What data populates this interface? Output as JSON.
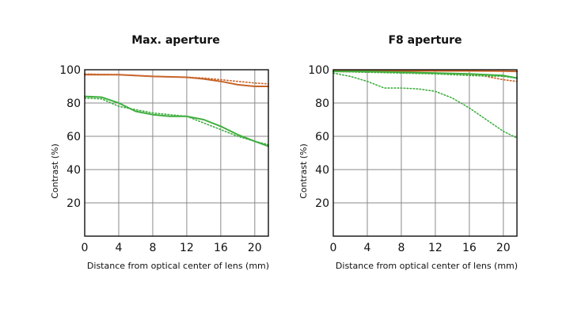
{
  "colors": {
    "orange": "#c8642a",
    "green": "#3fae3f",
    "grid": "#8a8a8a",
    "text": "#111111"
  },
  "chart_data": [
    {
      "type": "line",
      "title": "Max. aperture",
      "xlabel": "Distance from optical center of lens (mm)",
      "ylabel": "Contrast (%)",
      "xlim": [
        0,
        21.6
      ],
      "ylim": [
        0,
        100
      ],
      "xticks": [
        "0",
        "4",
        "8",
        "12",
        "16",
        "20"
      ],
      "yticks": [
        "20",
        "40",
        "60",
        "80",
        "100"
      ],
      "grid": true,
      "series": [
        {
          "color": "orange",
          "style": "solid",
          "x": [
            0,
            4,
            8,
            12,
            14,
            16,
            18,
            20,
            21.6
          ],
          "y": [
            97,
            97,
            96,
            95.5,
            94.5,
            93,
            91,
            90,
            90
          ]
        },
        {
          "color": "orange",
          "style": "dotted",
          "x": [
            0,
            4,
            8,
            12,
            14,
            16,
            18,
            20,
            21.6
          ],
          "y": [
            97.5,
            97,
            96,
            95.5,
            95,
            94,
            93,
            92,
            91.5
          ]
        },
        {
          "color": "green",
          "style": "solid",
          "x": [
            0,
            2,
            4,
            6,
            8,
            10,
            12,
            14,
            16,
            18,
            20,
            21.6
          ],
          "y": [
            84,
            83.5,
            80,
            75,
            73,
            72,
            72,
            70,
            66,
            61,
            57,
            54
          ]
        },
        {
          "color": "green",
          "style": "dotted",
          "x": [
            0,
            2,
            4,
            6,
            8,
            10,
            12,
            14,
            16,
            18,
            20,
            21.6
          ],
          "y": [
            83,
            82.5,
            78,
            76,
            74,
            73,
            72,
            68,
            64,
            60,
            57,
            55
          ]
        }
      ]
    },
    {
      "type": "line",
      "title": "F8 aperture",
      "xlabel": "Distance from optical center of lens (mm)",
      "ylabel": "Contrast (%)",
      "xlim": [
        0,
        21.6
      ],
      "ylim": [
        0,
        100
      ],
      "xticks": [
        "0",
        "4",
        "8",
        "12",
        "16",
        "20"
      ],
      "yticks": [
        "20",
        "40",
        "60",
        "80",
        "100"
      ],
      "grid": true,
      "series": [
        {
          "color": "orange",
          "style": "solid",
          "x": [
            0,
            4,
            8,
            12,
            16,
            20,
            21.6
          ],
          "y": [
            99.3,
            99.3,
            99.3,
            99.3,
            99.3,
            99.2,
            99
          ]
        },
        {
          "color": "orange",
          "style": "dotted",
          "x": [
            0,
            4,
            8,
            12,
            16,
            18,
            20,
            21.6
          ],
          "y": [
            99,
            98.5,
            98.5,
            98,
            97,
            96,
            94,
            93
          ]
        },
        {
          "color": "green",
          "style": "solid",
          "x": [
            0,
            4,
            8,
            12,
            16,
            18,
            20,
            21.6
          ],
          "y": [
            99,
            99,
            98.5,
            98,
            97.5,
            97,
            96.5,
            95
          ]
        },
        {
          "color": "green",
          "style": "dotted",
          "x": [
            0,
            2,
            4,
            6,
            8,
            10,
            12,
            14,
            16,
            18,
            20,
            21.6
          ],
          "y": [
            98,
            96,
            93,
            89,
            89,
            88.5,
            87,
            83,
            77,
            70,
            63,
            59
          ]
        },
        {
          "color": "green",
          "style": "dotted",
          "x": [
            0,
            4,
            8,
            12,
            16,
            20,
            21.6
          ],
          "y": [
            99,
            98.5,
            98,
            97.5,
            96.5,
            96,
            95
          ]
        }
      ]
    }
  ]
}
